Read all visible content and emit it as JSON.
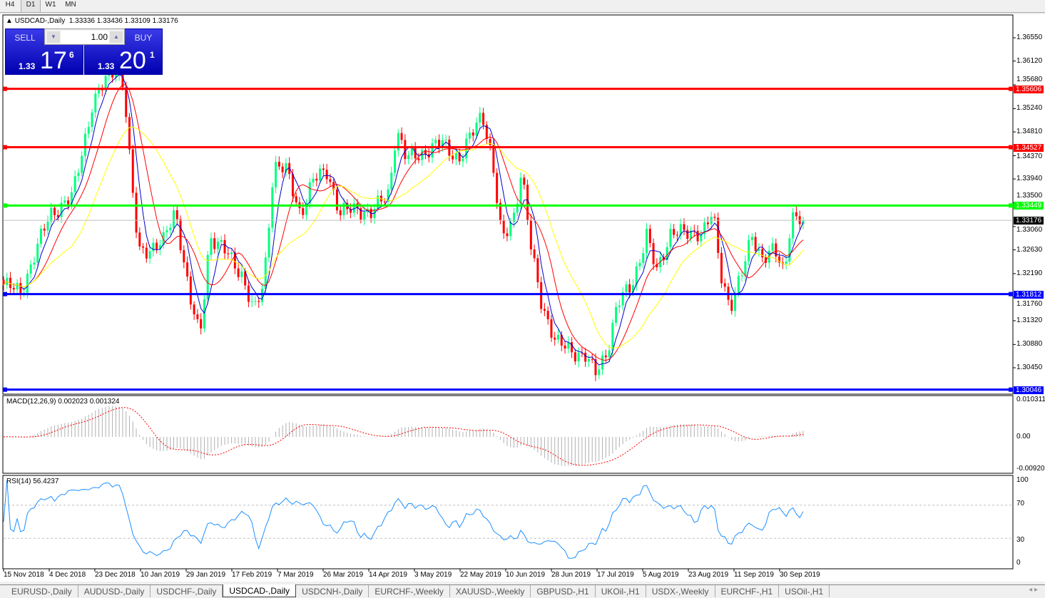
{
  "timeframes": [
    {
      "label": "H4"
    },
    {
      "label": "D1",
      "active": true
    },
    {
      "label": "W1"
    },
    {
      "label": "MN"
    }
  ],
  "header": {
    "symbol": "USDCAD-,Daily",
    "ohlc": "1.33336 1.33436 1.33109 1.33176"
  },
  "trade": {
    "sell_label": "SELL",
    "buy_label": "BUY",
    "lot": "1.00",
    "sell_big": "1.33",
    "sell_pips": "17",
    "sell_frac": "6",
    "buy_big": "1.33",
    "buy_pips": "20",
    "buy_frac": "1"
  },
  "price_axis": {
    "ticks": [
      "1.36550",
      "1.36120",
      "1.35680",
      "1.35240",
      "1.34810",
      "1.34370",
      "1.33940",
      "1.33500",
      "1.33060",
      "1.32630",
      "1.32190",
      "1.31760",
      "1.31320",
      "1.30880",
      "1.30450"
    ],
    "current": "1.33176"
  },
  "hlines": [
    {
      "price": "1.35606",
      "color": "#ff0000"
    },
    {
      "price": "1.34527",
      "color": "#ff0000"
    },
    {
      "price": "1.33449",
      "color": "#00ff00"
    },
    {
      "price": "1.31812",
      "color": "#0000ff"
    },
    {
      "price": "1.30046",
      "color": "#0000ff"
    }
  ],
  "macd": {
    "label": "MACD(12,26,9) 0.002023 0.001324",
    "max": "0.010311",
    "zero": "0.00",
    "min": "-0.009203"
  },
  "rsi": {
    "label": "RSI(14) 56.4237",
    "levels": [
      "100",
      "70",
      "30",
      "0"
    ]
  },
  "dates": [
    "15 Nov 2018",
    "4 Dec 2018",
    "23 Dec 2018",
    "10 Jan 2019",
    "29 Jan 2019",
    "17 Feb 2019",
    "7 Mar 2019",
    "26 Mar 2019",
    "14 Apr 2019",
    "3 May 2019",
    "22 May 2019",
    "10 Jun 2019",
    "28 Jun 2019",
    "17 Jul 2019",
    "5 Aug 2019",
    "23 Aug 2019",
    "11 Sep 2019",
    "30 Sep 2019"
  ],
  "tabs": [
    {
      "label": "EURUSD-,Daily"
    },
    {
      "label": "AUDUSD-,Daily"
    },
    {
      "label": "USDCHF-,Daily"
    },
    {
      "label": "USDCAD-,Daily",
      "active": true
    },
    {
      "label": "USDCNH-,Daily"
    },
    {
      "label": "EURCHF-,Weekly"
    },
    {
      "label": "XAUUSD-,Weekly"
    },
    {
      "label": "GBPUSD-,H1"
    },
    {
      "label": "UKOil-,H1"
    },
    {
      "label": "USDX-,Weekly"
    },
    {
      "label": "EURCHF-,H1"
    },
    {
      "label": "USOil-,H1"
    }
  ],
  "colors": {
    "bull": "#00ff7f",
    "bear": "#ff0000",
    "ma_fast": "#0000cc",
    "ma_mid": "#ff0000",
    "ma_slow": "#ffff00",
    "rsi": "#1e90ff",
    "macd_hist": "#b0b0b0",
    "macd_signal": "#ff0000"
  },
  "chart_data": {
    "type": "candlestick",
    "closes": [
      {
        "d": "2018-11-15",
        "c": 1.3198
      },
      {
        "d": "2018-11-22",
        "c": 1.3185
      },
      {
        "d": "2018-12-04",
        "c": 1.333
      },
      {
        "d": "2018-12-13",
        "c": 1.336
      },
      {
        "d": "2018-12-21",
        "c": 1.353
      },
      {
        "d": "2018-12-30",
        "c": 1.36
      },
      {
        "d": "2019-01-03",
        "c": 1.357
      },
      {
        "d": "2019-01-06",
        "c": 1.339
      },
      {
        "d": "2019-01-09",
        "c": 1.326
      },
      {
        "d": "2019-01-19",
        "c": 1.3275
      },
      {
        "d": "2019-01-24",
        "c": 1.334
      },
      {
        "d": "2019-01-30",
        "c": 1.317
      },
      {
        "d": "2019-02-03",
        "c": 1.31
      },
      {
        "d": "2019-02-07",
        "c": 1.329
      },
      {
        "d": "2019-02-15",
        "c": 1.325
      },
      {
        "d": "2019-02-20",
        "c": 1.322
      },
      {
        "d": "2019-02-25",
        "c": 1.3145
      },
      {
        "d": "2019-03-01",
        "c": 1.32
      },
      {
        "d": "2019-03-05",
        "c": 1.342
      },
      {
        "d": "2019-03-10",
        "c": 1.341
      },
      {
        "d": "2019-03-16",
        "c": 1.333
      },
      {
        "d": "2019-03-21",
        "c": 1.339
      },
      {
        "d": "2019-03-27",
        "c": 1.341
      },
      {
        "d": "2019-04-01",
        "c": 1.333
      },
      {
        "d": "2019-04-08",
        "c": 1.334
      },
      {
        "d": "2019-04-14",
        "c": 1.333
      },
      {
        "d": "2019-04-21",
        "c": 1.337
      },
      {
        "d": "2019-04-24",
        "c": 1.3488
      },
      {
        "d": "2019-04-28",
        "c": 1.343
      },
      {
        "d": "2019-05-07",
        "c": 1.3448
      },
      {
        "d": "2019-05-13",
        "c": 1.346
      },
      {
        "d": "2019-05-20",
        "c": 1.343
      },
      {
        "d": "2019-05-26",
        "c": 1.3488
      },
      {
        "d": "2019-05-29",
        "c": 1.352
      },
      {
        "d": "2019-06-02",
        "c": 1.343
      },
      {
        "d": "2019-06-06",
        "c": 1.3277
      },
      {
        "d": "2019-06-11",
        "c": 1.333
      },
      {
        "d": "2019-06-14",
        "c": 1.341
      },
      {
        "d": "2019-06-18",
        "c": 1.326
      },
      {
        "d": "2019-06-22",
        "c": 1.317
      },
      {
        "d": "2019-06-28",
        "c": 1.309
      },
      {
        "d": "2019-07-04",
        "c": 1.3079
      },
      {
        "d": "2019-07-10",
        "c": 1.3066
      },
      {
        "d": "2019-07-14",
        "c": 1.3033
      },
      {
        "d": "2019-07-19",
        "c": 1.3079
      },
      {
        "d": "2019-07-23",
        "c": 1.316
      },
      {
        "d": "2019-07-29",
        "c": 1.32
      },
      {
        "d": "2019-08-04",
        "c": 1.329
      },
      {
        "d": "2019-08-08",
        "c": 1.322
      },
      {
        "d": "2019-08-14",
        "c": 1.33
      },
      {
        "d": "2019-08-20",
        "c": 1.329
      },
      {
        "d": "2019-08-27",
        "c": 1.33
      },
      {
        "d": "2019-08-31",
        "c": 1.333
      },
      {
        "d": "2019-09-03",
        "c": 1.322
      },
      {
        "d": "2019-09-07",
        "c": 1.316
      },
      {
        "d": "2019-09-12",
        "c": 1.322
      },
      {
        "d": "2019-09-16",
        "c": 1.329
      },
      {
        "d": "2019-09-20",
        "c": 1.325
      },
      {
        "d": "2019-09-25",
        "c": 1.326
      },
      {
        "d": "2019-09-29",
        "c": 1.322
      },
      {
        "d": "2019-10-02",
        "c": 1.333
      },
      {
        "d": "2019-10-06",
        "c": 1.33176
      }
    ],
    "ylim": [
      1.30046,
      1.3655
    ]
  }
}
